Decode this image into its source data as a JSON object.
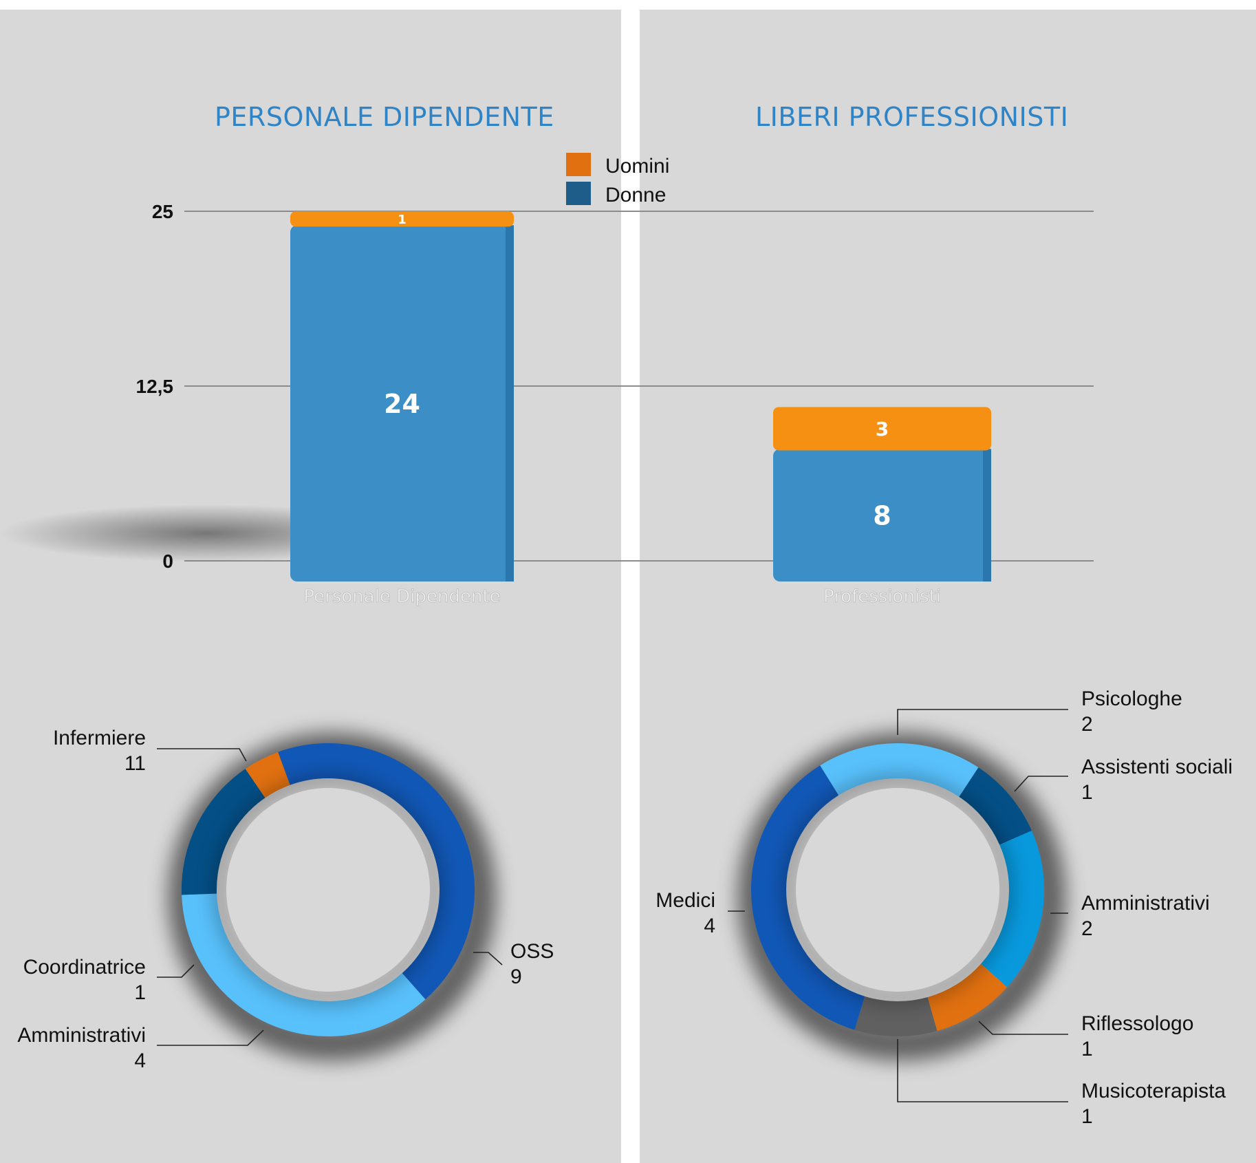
{
  "titles": {
    "left": "PERSONALE DIPENDENTE",
    "right": "LIBERI PROFESSIONISTI"
  },
  "colors": {
    "background": "#d8d8d8",
    "title": "#2f84c8",
    "uomini": "#f59012",
    "donne": "#3b8ec6",
    "uomini_legend": "#e07010",
    "donne_legend": "#1e5d8a"
  },
  "chart_data": [
    {
      "type": "bar",
      "stacked": true,
      "categories": [
        "Personale Dipendente",
        "Professionisti"
      ],
      "series": [
        {
          "name": "Donne",
          "values": [
            24,
            8
          ]
        },
        {
          "name": "Uomini",
          "values": [
            1,
            3
          ]
        }
      ],
      "yticks": [
        "0",
        "12,5",
        "25"
      ],
      "ylim": [
        0,
        25
      ],
      "grid": true,
      "legend_position": "top-center"
    },
    {
      "type": "pie",
      "donut": true,
      "title": "PERSONALE DIPENDENTE",
      "slices": [
        {
          "label": "Infermiere",
          "value": 11,
          "color": "#1157b5"
        },
        {
          "label": "OSS",
          "value": 9,
          "color": "#58c0fb"
        },
        {
          "label": "Amministrativi",
          "value": 4,
          "color": "#034f86"
        },
        {
          "label": "Coordinatrice",
          "value": 1,
          "color": "#e07010"
        }
      ]
    },
    {
      "type": "pie",
      "donut": true,
      "title": "LIBERI PROFESSIONISTI",
      "slices": [
        {
          "label": "Psicologhe",
          "value": 2,
          "color": "#58c0fb"
        },
        {
          "label": "Assistenti sociali",
          "value": 1,
          "color": "#034f86"
        },
        {
          "label": "Amministrativi",
          "value": 2,
          "color": "#0898dc"
        },
        {
          "label": "Riflessologo",
          "value": 1,
          "color": "#e07010"
        },
        {
          "label": "Musicoterapista",
          "value": 1,
          "color": "#606060"
        },
        {
          "label": "Medici",
          "value": 4,
          "color": "#1157b5"
        }
      ]
    }
  ]
}
